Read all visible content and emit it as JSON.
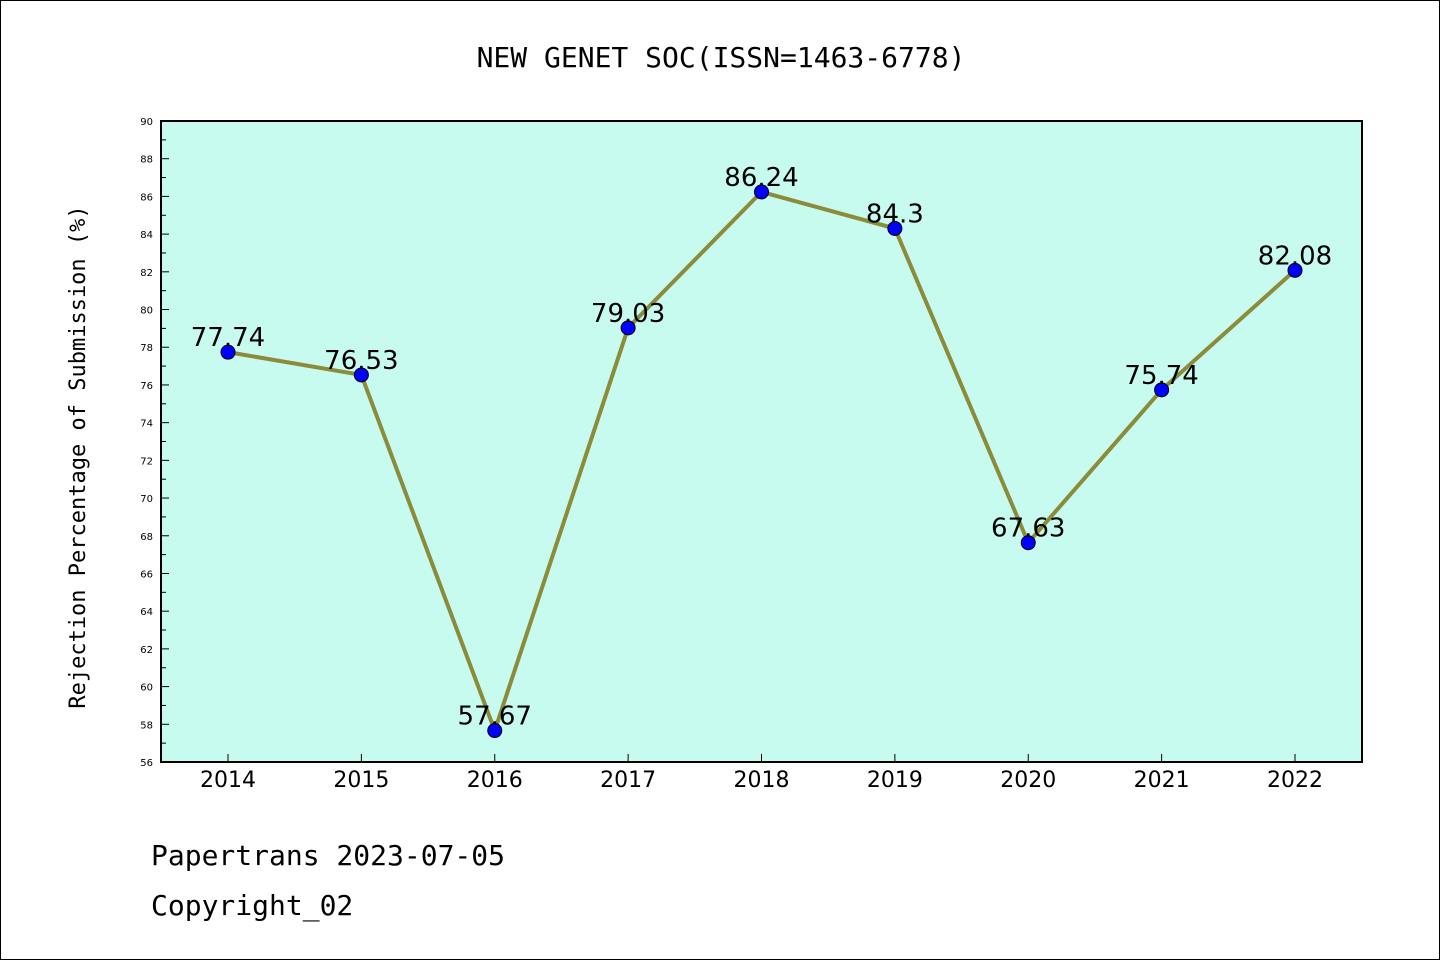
{
  "chart_data": {
    "type": "line",
    "title": "NEW GENET SOC(ISSN=1463-6778)",
    "ylabel": "Rejection Percentage of Submission (%)",
    "xlabel": "",
    "categories": [
      "2014",
      "2015",
      "2016",
      "2017",
      "2018",
      "2019",
      "2020",
      "2021",
      "2022"
    ],
    "values": [
      77.74,
      76.53,
      57.67,
      79.03,
      86.24,
      84.3,
      67.63,
      75.74,
      82.08
    ],
    "data_labels": [
      "77.74",
      "76.53",
      "57.67",
      "79.03",
      "86.24",
      "84.3",
      "67.63",
      "75.74",
      "82.08"
    ],
    "ylim": [
      56,
      90
    ],
    "yticks": [
      56,
      58,
      60,
      62,
      64,
      66,
      68,
      70,
      72,
      74,
      76,
      78,
      80,
      82,
      84,
      86,
      88,
      90
    ],
    "grid": false,
    "legend": "none",
    "colors": {
      "plot_background": "#c8fbef",
      "line": "#8b8b3a",
      "marker": "#0000ff"
    }
  },
  "footer": {
    "line1": "Papertrans 2023-07-05",
    "line2": "Copyright_02"
  }
}
